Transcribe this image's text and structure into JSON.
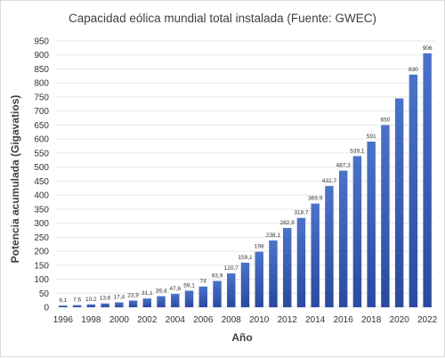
{
  "chart_data": {
    "type": "bar",
    "title": "Capacidad eólica mundial total instalada (Fuente: GWEC)",
    "xlabel": "Año",
    "ylabel": "Potencia acumulada (Gigavatios)",
    "categories": [
      "1996",
      "1997",
      "1998",
      "1999",
      "2000",
      "2001",
      "2002",
      "2003",
      "2004",
      "2005",
      "2006",
      "2007",
      "2008",
      "2009",
      "2010",
      "2011",
      "2012",
      "2013",
      "2014",
      "2015",
      "2016",
      "2017",
      "2018",
      "2019",
      "2020",
      "2021",
      "2022"
    ],
    "values": [
      6.1,
      7.6,
      10.2,
      13.6,
      17.4,
      23.9,
      31.1,
      39.4,
      47.6,
      59.1,
      74,
      93.9,
      120.7,
      159.1,
      198,
      238.1,
      282.9,
      318.7,
      369.9,
      432.7,
      487.3,
      539.1,
      591,
      650,
      745,
      830,
      906
    ],
    "data_labels": [
      "6,1",
      "7,6",
      "10,2",
      "13,6",
      "17,4",
      "23,9",
      "31,1",
      "39,4",
      "47,6",
      "59,1",
      "74",
      "93,9",
      "120,7",
      "159,1",
      "198",
      "238,1",
      "282,9",
      "318,7",
      "369,9",
      "432,7",
      "487,3",
      "539,1",
      "591",
      "650",
      "",
      "830",
      "906"
    ],
    "x_tick_labels": [
      "1996",
      "1998",
      "2000",
      "2002",
      "2004",
      "2006",
      "2008",
      "2010",
      "2012",
      "2014",
      "2016",
      "2018",
      "2020",
      "2022"
    ],
    "y_tick_labels": [
      "0",
      "50",
      "100",
      "150",
      "200",
      "250",
      "300",
      "350",
      "400",
      "450",
      "500",
      "550",
      "600",
      "650",
      "700",
      "750",
      "800",
      "850",
      "900",
      "950"
    ],
    "ylim": [
      0,
      950
    ],
    "ytick_step": 50,
    "grid": true,
    "legend": "none",
    "bar_color_top": "#4a73c9",
    "bar_color_bottom": "#2a4a9e"
  }
}
